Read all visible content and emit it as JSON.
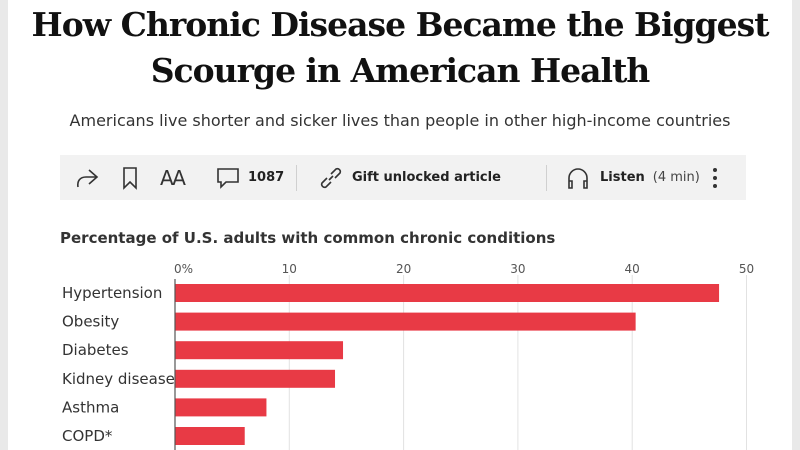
{
  "article": {
    "headline_line1": "How Chronic Disease Became the Biggest",
    "headline_line2": "Scourge in American Health",
    "dek": "Americans live shorter and sicker lives than people in other high-income countries"
  },
  "toolbar": {
    "icons": [
      "share-icon",
      "bookmark-icon",
      "text-size-icon",
      "comment-icon",
      "link-icon",
      "headphones-icon",
      "more-icon"
    ],
    "text_size_label": "AA",
    "comment_count": "1087",
    "gift_label": "Gift unlocked article",
    "listen_label": "Listen",
    "listen_duration": "(4 min)"
  },
  "chart_data": {
    "type": "bar",
    "orientation": "horizontal",
    "title": "Percentage of U.S. adults with common chronic conditions",
    "categories": [
      "Hypertension",
      "Obesity",
      "Diabetes",
      "Kidney disease",
      "Asthma",
      "COPD*"
    ],
    "values": [
      47.6,
      40.3,
      14.7,
      14.0,
      8.0,
      6.1
    ],
    "xlim": [
      0,
      50
    ],
    "ticks": [
      "0%",
      "10",
      "20",
      "30",
      "40",
      "50"
    ],
    "tick_values": [
      0,
      10,
      20,
      30,
      40,
      50
    ],
    "grid": true,
    "bar_color": "#e83a45"
  }
}
